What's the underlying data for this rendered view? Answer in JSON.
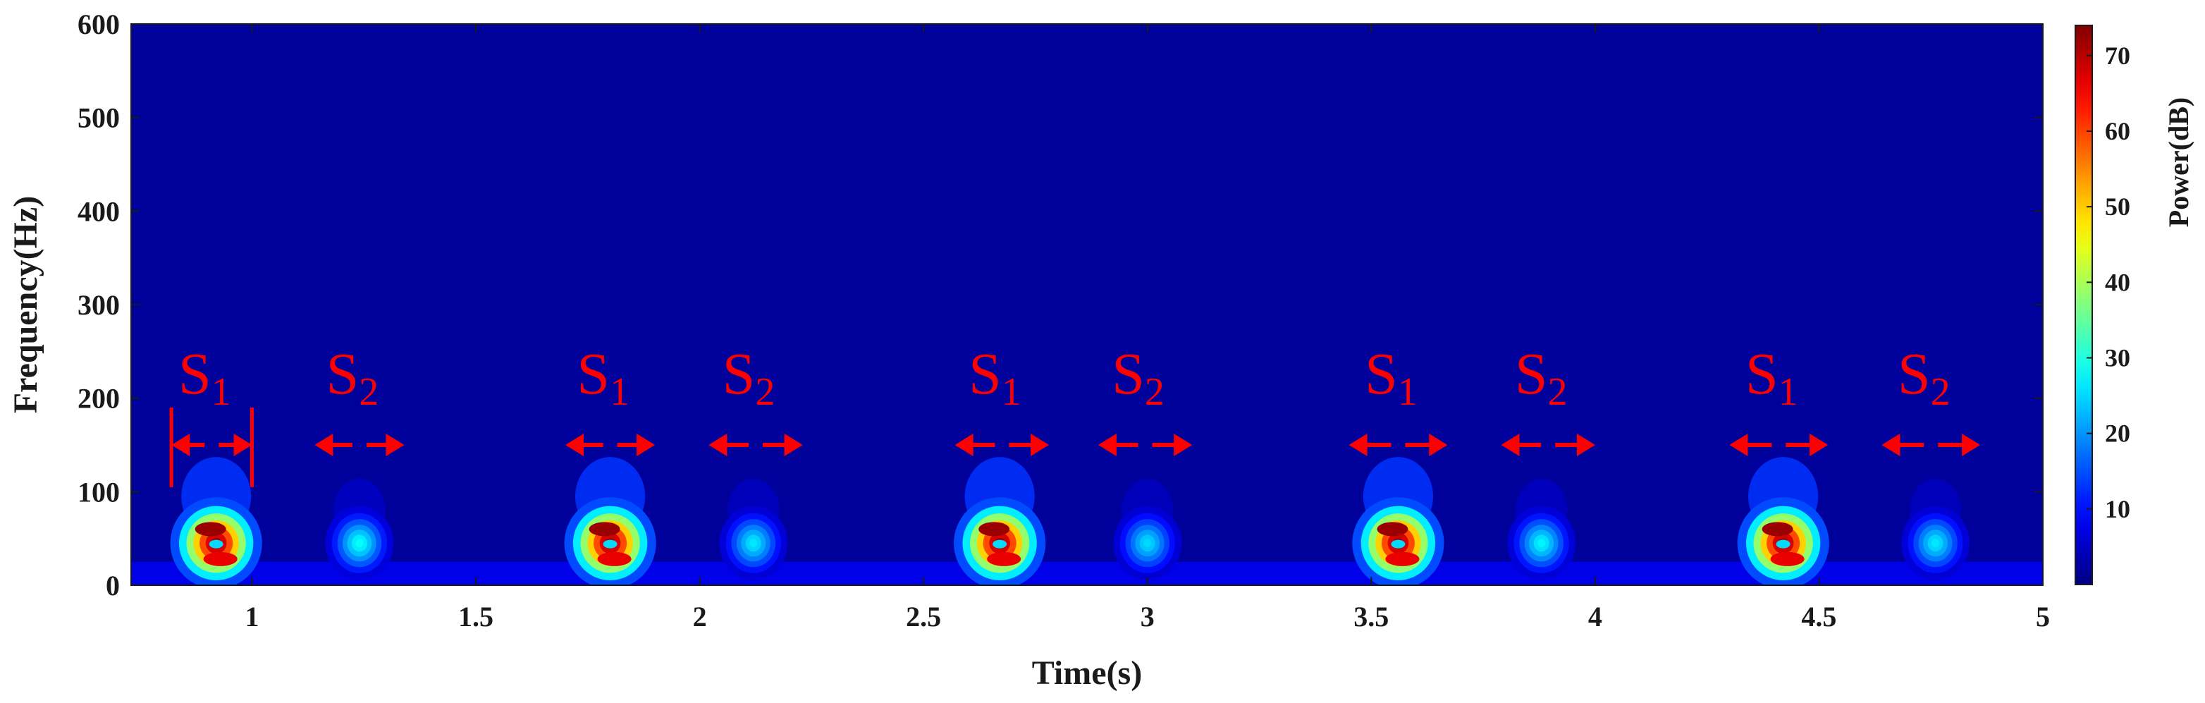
{
  "chart_data": {
    "type": "heatmap",
    "title": "",
    "xlabel": "Time(s)",
    "ylabel": "Frequency(Hz)",
    "colorbar_label": "Power(dB)",
    "colormap": "jet",
    "xlim": [
      0.73,
      5.0
    ],
    "ylim": [
      0,
      600
    ],
    "clim": [
      0,
      74
    ],
    "x_ticks": [
      1,
      1.5,
      2,
      2.5,
      3,
      3.5,
      4,
      4.5,
      5
    ],
    "x_tick_labels": [
      "1",
      "1.5",
      "2",
      "2.5",
      "3",
      "3.5",
      "4",
      "4.5",
      "5"
    ],
    "y_ticks": [
      0,
      100,
      200,
      300,
      400,
      500,
      600
    ],
    "y_tick_labels": [
      "0",
      "100",
      "200",
      "300",
      "400",
      "500",
      "600"
    ],
    "colorbar_ticks": [
      10,
      20,
      30,
      40,
      50,
      60,
      70
    ],
    "colorbar_tick_labels": [
      "10",
      "20",
      "30",
      "40",
      "50",
      "60",
      "70"
    ],
    "background_power_db": 2,
    "grid": false,
    "blobs": [
      {
        "name": "S1",
        "t_center": 0.92,
        "f_center": 45,
        "peak_db": 72
      },
      {
        "name": "S2",
        "t_center": 1.24,
        "f_center": 45,
        "peak_db": 28
      },
      {
        "name": "S1",
        "t_center": 1.8,
        "f_center": 45,
        "peak_db": 72
      },
      {
        "name": "S2",
        "t_center": 2.12,
        "f_center": 45,
        "peak_db": 26
      },
      {
        "name": "S1",
        "t_center": 2.67,
        "f_center": 45,
        "peak_db": 72
      },
      {
        "name": "S2",
        "t_center": 3.0,
        "f_center": 45,
        "peak_db": 25
      },
      {
        "name": "S1",
        "t_center": 3.56,
        "f_center": 45,
        "peak_db": 72
      },
      {
        "name": "S2",
        "t_center": 3.88,
        "f_center": 45,
        "peak_db": 27
      },
      {
        "name": "S1",
        "t_center": 4.42,
        "f_center": 45,
        "peak_db": 72
      },
      {
        "name": "S2",
        "t_center": 4.76,
        "f_center": 45,
        "peak_db": 26
      }
    ],
    "annotations": [
      {
        "main": "S",
        "sub": "1",
        "t_start": 0.82,
        "t_end": 1.0,
        "bracketed": true
      },
      {
        "main": "S",
        "sub": "2",
        "t_start": 1.14,
        "t_end": 1.34,
        "bracketed": false
      },
      {
        "main": "S",
        "sub": "1",
        "t_start": 1.7,
        "t_end": 1.9,
        "bracketed": false
      },
      {
        "main": "S",
        "sub": "2",
        "t_start": 2.02,
        "t_end": 2.23,
        "bracketed": false
      },
      {
        "main": "S",
        "sub": "1",
        "t_start": 2.57,
        "t_end": 2.78,
        "bracketed": false
      },
      {
        "main": "S",
        "sub": "2",
        "t_start": 2.89,
        "t_end": 3.1,
        "bracketed": false
      },
      {
        "main": "S",
        "sub": "1",
        "t_start": 3.45,
        "t_end": 3.67,
        "bracketed": false
      },
      {
        "main": "S",
        "sub": "2",
        "t_start": 3.79,
        "t_end": 4.0,
        "bracketed": false
      },
      {
        "main": "S",
        "sub": "1",
        "t_start": 4.3,
        "t_end": 4.52,
        "bracketed": false
      },
      {
        "main": "S",
        "sub": "2",
        "t_start": 4.64,
        "t_end": 4.86,
        "bracketed": false
      }
    ],
    "annotation_color": "#ff0000"
  }
}
